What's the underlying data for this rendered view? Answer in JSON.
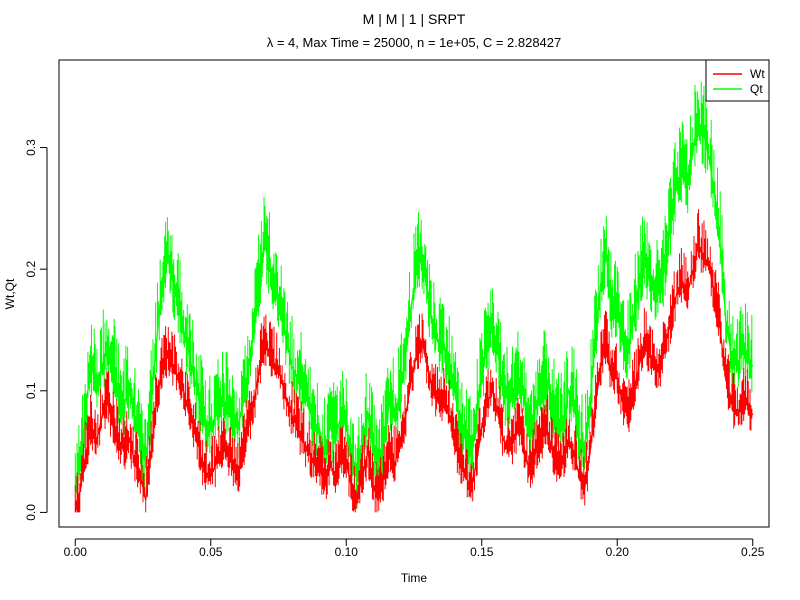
{
  "chart_data": {
    "type": "line",
    "title": "M | M | 1 | SRPT",
    "subtitle": "λ = 4, Max Time = 25000, n = 1e+05, C = 2.828427",
    "xlabel": "Time",
    "ylabel": "Wt,Qt",
    "xlim": [
      -0.006,
      0.256
    ],
    "ylim": [
      -0.012,
      0.372
    ],
    "x_ticks": [
      "0.00",
      "0.05",
      "0.10",
      "0.15",
      "0.20",
      "0.25"
    ],
    "y_ticks": [
      "0.0",
      "0.1",
      "0.2",
      "0.3"
    ],
    "grid": false,
    "legend_position": "top-right",
    "series": [
      {
        "name": "Wt",
        "color": "#ff0000",
        "x": [
          0.0,
          0.002,
          0.004,
          0.006,
          0.008,
          0.01,
          0.012,
          0.014,
          0.016,
          0.018,
          0.02,
          0.022,
          0.024,
          0.026,
          0.028,
          0.03,
          0.032,
          0.034,
          0.036,
          0.038,
          0.04,
          0.042,
          0.044,
          0.046,
          0.048,
          0.05,
          0.052,
          0.054,
          0.056,
          0.058,
          0.06,
          0.062,
          0.064,
          0.066,
          0.068,
          0.07,
          0.072,
          0.074,
          0.076,
          0.078,
          0.08,
          0.082,
          0.084,
          0.086,
          0.088,
          0.09,
          0.092,
          0.094,
          0.096,
          0.098,
          0.1,
          0.102,
          0.104,
          0.106,
          0.108,
          0.11,
          0.112,
          0.114,
          0.116,
          0.118,
          0.12,
          0.122,
          0.124,
          0.126,
          0.128,
          0.13,
          0.132,
          0.134,
          0.136,
          0.138,
          0.14,
          0.142,
          0.144,
          0.146,
          0.148,
          0.15,
          0.152,
          0.154,
          0.156,
          0.158,
          0.16,
          0.162,
          0.164,
          0.166,
          0.168,
          0.17,
          0.172,
          0.174,
          0.176,
          0.178,
          0.18,
          0.182,
          0.184,
          0.186,
          0.188,
          0.19,
          0.192,
          0.194,
          0.196,
          0.198,
          0.2,
          0.202,
          0.204,
          0.206,
          0.208,
          0.21,
          0.212,
          0.214,
          0.216,
          0.218,
          0.22,
          0.222,
          0.224,
          0.226,
          0.228,
          0.23,
          0.232,
          0.234,
          0.236,
          0.238,
          0.24,
          0.242,
          0.244,
          0.246,
          0.248,
          0.25
        ],
        "values": [
          0.0,
          0.02,
          0.05,
          0.07,
          0.06,
          0.08,
          0.09,
          0.07,
          0.06,
          0.05,
          0.06,
          0.04,
          0.03,
          0.01,
          0.05,
          0.09,
          0.12,
          0.13,
          0.12,
          0.11,
          0.1,
          0.08,
          0.07,
          0.05,
          0.03,
          0.03,
          0.04,
          0.05,
          0.05,
          0.04,
          0.03,
          0.05,
          0.07,
          0.09,
          0.12,
          0.14,
          0.13,
          0.12,
          0.11,
          0.09,
          0.08,
          0.07,
          0.06,
          0.05,
          0.04,
          0.04,
          0.02,
          0.04,
          0.03,
          0.05,
          0.04,
          0.02,
          0.01,
          0.03,
          0.05,
          0.02,
          0.01,
          0.03,
          0.05,
          0.04,
          0.06,
          0.08,
          0.11,
          0.13,
          0.14,
          0.12,
          0.1,
          0.09,
          0.09,
          0.08,
          0.06,
          0.04,
          0.03,
          0.02,
          0.04,
          0.07,
          0.09,
          0.1,
          0.08,
          0.06,
          0.05,
          0.06,
          0.07,
          0.05,
          0.03,
          0.05,
          0.06,
          0.07,
          0.05,
          0.04,
          0.04,
          0.06,
          0.05,
          0.03,
          0.02,
          0.05,
          0.09,
          0.12,
          0.14,
          0.11,
          0.11,
          0.09,
          0.08,
          0.1,
          0.12,
          0.14,
          0.13,
          0.12,
          0.12,
          0.14,
          0.16,
          0.18,
          0.19,
          0.18,
          0.2,
          0.22,
          0.21,
          0.2,
          0.18,
          0.15,
          0.11,
          0.09,
          0.08,
          0.09,
          0.09,
          0.08
        ]
      },
      {
        "name": "Qt",
        "color": "#00ff00",
        "x": [
          0.0,
          0.002,
          0.004,
          0.006,
          0.008,
          0.01,
          0.012,
          0.014,
          0.016,
          0.018,
          0.02,
          0.022,
          0.024,
          0.026,
          0.028,
          0.03,
          0.032,
          0.034,
          0.036,
          0.038,
          0.04,
          0.042,
          0.044,
          0.046,
          0.048,
          0.05,
          0.052,
          0.054,
          0.056,
          0.058,
          0.06,
          0.062,
          0.064,
          0.066,
          0.068,
          0.07,
          0.072,
          0.074,
          0.076,
          0.078,
          0.08,
          0.082,
          0.084,
          0.086,
          0.088,
          0.09,
          0.092,
          0.094,
          0.096,
          0.098,
          0.1,
          0.102,
          0.104,
          0.106,
          0.108,
          0.11,
          0.112,
          0.114,
          0.116,
          0.118,
          0.12,
          0.122,
          0.124,
          0.126,
          0.128,
          0.13,
          0.132,
          0.134,
          0.136,
          0.138,
          0.14,
          0.142,
          0.144,
          0.146,
          0.148,
          0.15,
          0.152,
          0.154,
          0.156,
          0.158,
          0.16,
          0.162,
          0.164,
          0.166,
          0.168,
          0.17,
          0.172,
          0.174,
          0.176,
          0.178,
          0.18,
          0.182,
          0.184,
          0.186,
          0.188,
          0.19,
          0.192,
          0.194,
          0.196,
          0.198,
          0.2,
          0.202,
          0.204,
          0.206,
          0.208,
          0.21,
          0.212,
          0.214,
          0.216,
          0.218,
          0.22,
          0.222,
          0.224,
          0.226,
          0.228,
          0.23,
          0.232,
          0.234,
          0.236,
          0.238,
          0.24,
          0.242,
          0.244,
          0.246,
          0.248,
          0.25
        ],
        "values": [
          0.02,
          0.04,
          0.09,
          0.12,
          0.1,
          0.12,
          0.14,
          0.12,
          0.1,
          0.09,
          0.1,
          0.08,
          0.06,
          0.04,
          0.09,
          0.14,
          0.19,
          0.21,
          0.19,
          0.17,
          0.15,
          0.13,
          0.11,
          0.09,
          0.07,
          0.07,
          0.08,
          0.09,
          0.09,
          0.08,
          0.07,
          0.09,
          0.12,
          0.15,
          0.19,
          0.22,
          0.2,
          0.18,
          0.16,
          0.14,
          0.12,
          0.11,
          0.1,
          0.09,
          0.07,
          0.07,
          0.05,
          0.07,
          0.06,
          0.08,
          0.07,
          0.05,
          0.03,
          0.06,
          0.08,
          0.05,
          0.03,
          0.06,
          0.09,
          0.08,
          0.1,
          0.13,
          0.17,
          0.2,
          0.21,
          0.18,
          0.15,
          0.14,
          0.14,
          0.12,
          0.1,
          0.07,
          0.06,
          0.05,
          0.08,
          0.11,
          0.14,
          0.15,
          0.13,
          0.1,
          0.09,
          0.1,
          0.11,
          0.09,
          0.06,
          0.09,
          0.1,
          0.11,
          0.09,
          0.07,
          0.07,
          0.1,
          0.09,
          0.06,
          0.05,
          0.09,
          0.15,
          0.19,
          0.21,
          0.17,
          0.17,
          0.14,
          0.13,
          0.16,
          0.19,
          0.21,
          0.19,
          0.18,
          0.18,
          0.21,
          0.24,
          0.27,
          0.28,
          0.27,
          0.3,
          0.32,
          0.31,
          0.29,
          0.26,
          0.22,
          0.16,
          0.13,
          0.12,
          0.13,
          0.13,
          0.12
        ]
      }
    ]
  }
}
